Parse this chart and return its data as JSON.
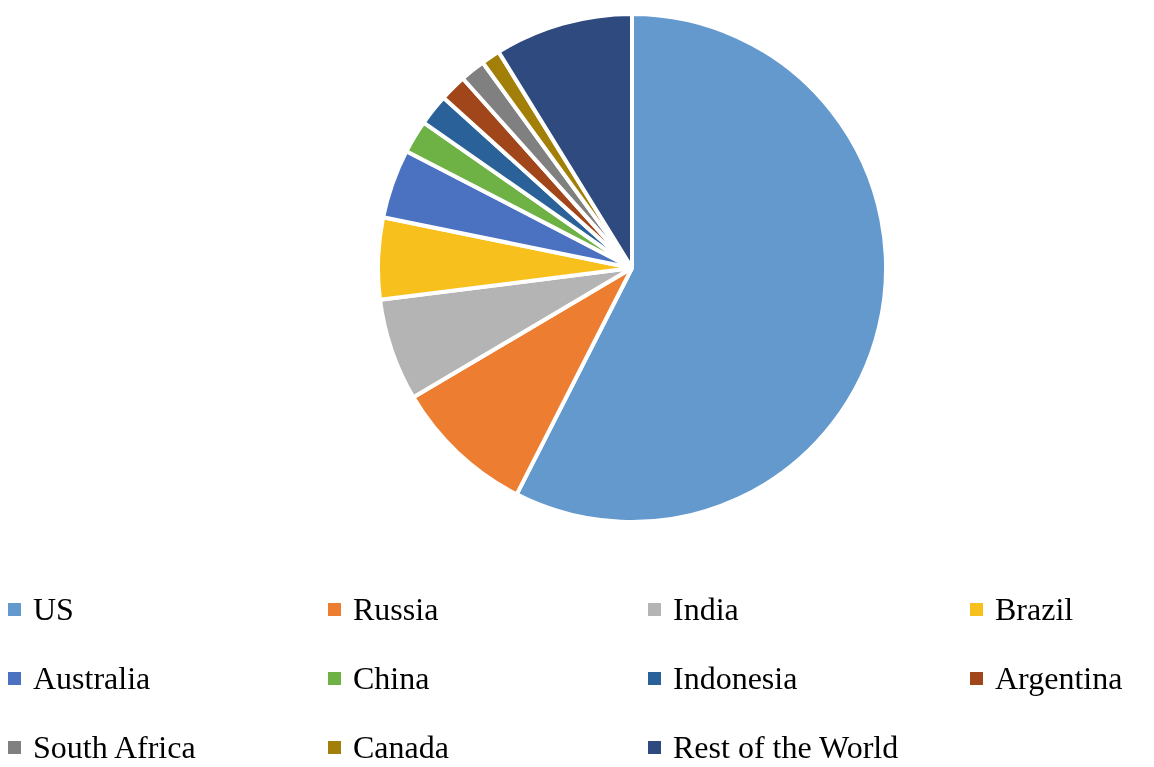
{
  "chart_data": {
    "type": "pie",
    "categories": [
      "US",
      "Russia",
      "India",
      "Brazil",
      "Australia",
      "China",
      "Indonesia",
      "Argentina",
      "South Africa",
      "Canada",
      "Rest of the World"
    ],
    "values": [
      57.5,
      9,
      6.5,
      5.2,
      4.4,
      2.1,
      2,
      1.7,
      1.6,
      1.2,
      8.8
    ],
    "colors": [
      "#6399cc",
      "#ed7d31",
      "#b4b4b4",
      "#f8c01c",
      "#4a72c0",
      "#6eb145",
      "#2a6199",
      "#a0461a",
      "#808080",
      "#a27f08",
      "#2f4a7f"
    ],
    "legend": "bottom"
  }
}
